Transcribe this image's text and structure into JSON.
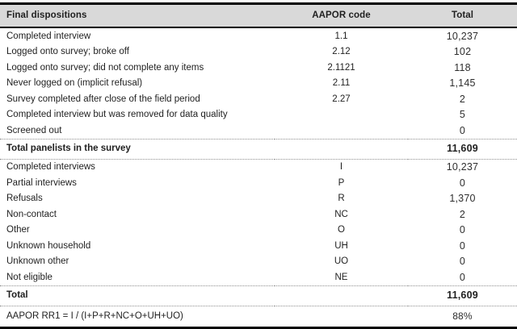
{
  "colors": {
    "header_bg": "#d9d9d9",
    "text": "#1f1f1f",
    "number_text": "#2e2e2e",
    "thick_border": "#000000",
    "dotted_rule": "#8f8f8f"
  },
  "table": {
    "columns": {
      "dispositions": "Final dispositions",
      "code": "AAPOR code",
      "total": "Total"
    },
    "rows": [
      {
        "label": "Completed interview",
        "code": "1.1",
        "total": "10,237"
      },
      {
        "label": "Logged onto survey; broke off",
        "code": "2.12",
        "total": "102"
      },
      {
        "label": "Logged onto survey; did not complete any items",
        "code": "2.1121",
        "total": "118"
      },
      {
        "label": "Never logged on (implicit refusal)",
        "code": "2.11",
        "total": "1,145"
      },
      {
        "label": "Survey completed after close of the field period",
        "code": "2.27",
        "total": "2"
      },
      {
        "label": "Completed interview but was removed for data quality",
        "code": "",
        "total": "5"
      },
      {
        "label": "Screened out",
        "code": "",
        "total": "0"
      },
      {
        "label": "Total panelists in the survey",
        "code": "",
        "total": "11,609"
      },
      {
        "label": "Completed interviews",
        "code": "I",
        "total": "10,237"
      },
      {
        "label": "Partial interviews",
        "code": "P",
        "total": "0"
      },
      {
        "label": "Refusals",
        "code": "R",
        "total": "1,370"
      },
      {
        "label": "Non-contact",
        "code": "NC",
        "total": "2"
      },
      {
        "label": "Other",
        "code": "O",
        "total": "0"
      },
      {
        "label": "Unknown household",
        "code": "UH",
        "total": "0"
      },
      {
        "label": "Unknown other",
        "code": "UO",
        "total": "0"
      },
      {
        "label": "Not eligible",
        "code": "NE",
        "total": "0"
      },
      {
        "label": "Total",
        "code": "",
        "total": "11,609"
      },
      {
        "label": "AAPOR RR1 = I / (I+P+R+NC+O+UH+UO)",
        "code": "",
        "total": "88%"
      }
    ]
  }
}
